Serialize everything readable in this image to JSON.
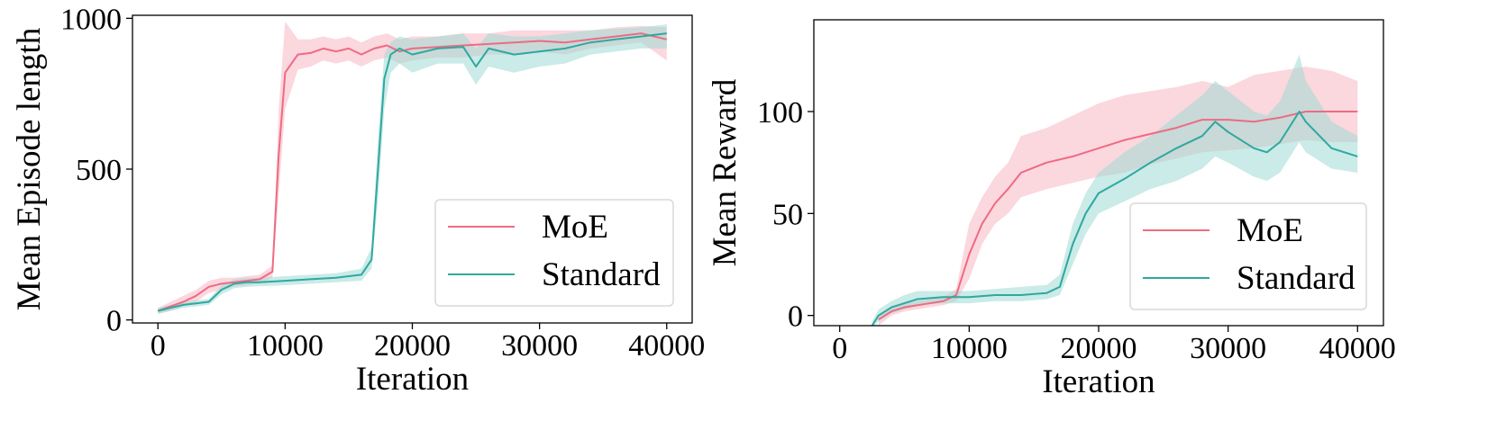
{
  "chart_data": [
    {
      "type": "line",
      "title": "",
      "xlabel": "Iteration",
      "ylabel": "Mean Episode length",
      "xlim": [
        -2000,
        42000
      ],
      "ylim": [
        -10,
        1010
      ],
      "xticks": [
        0,
        10000,
        20000,
        30000,
        40000
      ],
      "xtick_labels": [
        "0",
        "10000",
        "20000",
        "30000",
        "40000"
      ],
      "yticks": [
        0,
        500,
        1000
      ],
      "ytick_labels": [
        "0",
        "500",
        "1000"
      ],
      "grid": false,
      "legend": {
        "placement": "lower-right",
        "entries": [
          "MoE",
          "Standard"
        ]
      },
      "series": [
        {
          "name": "MoE",
          "color": "#ee6b82",
          "band_color": "#f7b6c2",
          "x": [
            0,
            1000,
            2000,
            3000,
            4000,
            5000,
            6000,
            7000,
            8000,
            9000,
            9500,
            10000,
            11000,
            12000,
            13000,
            14000,
            15000,
            16000,
            17000,
            18000,
            19000,
            20000,
            22000,
            24000,
            26000,
            28000,
            30000,
            32000,
            34000,
            36000,
            38000,
            40000
          ],
          "mean": [
            30,
            45,
            60,
            80,
            110,
            120,
            125,
            130,
            135,
            160,
            550,
            820,
            880,
            885,
            900,
            890,
            900,
            880,
            900,
            910,
            890,
            900,
            905,
            910,
            915,
            920,
            925,
            920,
            930,
            940,
            950,
            930
          ],
          "lower": [
            20,
            30,
            45,
            60,
            90,
            100,
            110,
            115,
            120,
            140,
            420,
            700,
            830,
            840,
            860,
            850,
            860,
            840,
            860,
            870,
            850,
            860,
            870,
            870,
            880,
            880,
            890,
            880,
            900,
            910,
            920,
            860
          ],
          "upper": [
            40,
            60,
            80,
            100,
            130,
            140,
            140,
            145,
            150,
            180,
            700,
            990,
            930,
            930,
            940,
            930,
            940,
            920,
            940,
            950,
            930,
            940,
            940,
            950,
            950,
            960,
            960,
            960,
            960,
            970,
            975,
            970
          ]
        },
        {
          "name": "Standard",
          "color": "#2fa8a0",
          "band_color": "#9edbd4",
          "x": [
            0,
            1000,
            2000,
            3000,
            4000,
            5000,
            6000,
            7000,
            8000,
            10000,
            12000,
            14000,
            16000,
            16800,
            17300,
            17800,
            18300,
            19000,
            20000,
            22000,
            24000,
            25000,
            26000,
            28000,
            30000,
            32000,
            34000,
            36000,
            38000,
            40000
          ],
          "mean": [
            30,
            40,
            50,
            55,
            60,
            100,
            120,
            125,
            125,
            130,
            135,
            140,
            150,
            200,
            500,
            800,
            880,
            900,
            880,
            900,
            905,
            840,
            900,
            880,
            890,
            900,
            920,
            930,
            940,
            950
          ],
          "lower": [
            20,
            30,
            40,
            45,
            50,
            85,
            105,
            110,
            112,
            115,
            120,
            125,
            130,
            170,
            400,
            700,
            820,
            850,
            820,
            850,
            850,
            780,
            840,
            820,
            840,
            850,
            880,
            890,
            900,
            900
          ],
          "upper": [
            40,
            50,
            60,
            65,
            70,
            115,
            135,
            140,
            140,
            145,
            150,
            155,
            170,
            240,
            600,
            880,
            920,
            940,
            930,
            940,
            950,
            900,
            950,
            940,
            940,
            950,
            960,
            965,
            970,
            980
          ]
        }
      ]
    },
    {
      "type": "line",
      "title": "",
      "xlabel": "Iteration",
      "ylabel": "Mean Reward",
      "xlim": [
        -2000,
        42000
      ],
      "ylim": [
        -5,
        145
      ],
      "xticks": [
        0,
        10000,
        20000,
        30000,
        40000
      ],
      "xtick_labels": [
        "0",
        "10000",
        "20000",
        "30000",
        "40000"
      ],
      "yticks": [
        0,
        50,
        100
      ],
      "ytick_labels": [
        "0",
        "50",
        "100"
      ],
      "grid": false,
      "legend": {
        "placement": "lower-right",
        "entries": [
          "MoE",
          "Standard"
        ]
      },
      "series": [
        {
          "name": "MoE",
          "color": "#ee6b82",
          "band_color": "#f7b6c2",
          "x": [
            3000,
            4000,
            5000,
            6000,
            8000,
            9000,
            10000,
            11000,
            12000,
            13000,
            14000,
            16000,
            18000,
            20000,
            22000,
            24000,
            26000,
            28000,
            30000,
            32000,
            34000,
            36000,
            38000,
            40000
          ],
          "mean": [
            -2,
            2,
            4,
            5,
            7,
            10,
            30,
            45,
            55,
            62,
            70,
            75,
            78,
            82,
            86,
            89,
            92,
            96,
            96,
            95,
            97,
            100,
            100,
            100
          ],
          "lower": [
            -5,
            0,
            2,
            3,
            5,
            7,
            18,
            35,
            45,
            50,
            58,
            62,
            65,
            68,
            70,
            74,
            77,
            80,
            81,
            82,
            84,
            86,
            85,
            85
          ],
          "upper": [
            0,
            4,
            6,
            7,
            9,
            13,
            45,
            58,
            68,
            75,
            88,
            92,
            98,
            104,
            108,
            110,
            112,
            115,
            112,
            118,
            120,
            122,
            120,
            115
          ]
        },
        {
          "name": "Standard",
          "color": "#2fa8a0",
          "band_color": "#9edbd4",
          "x": [
            2500,
            3000,
            4000,
            5000,
            6000,
            8000,
            10000,
            12000,
            14000,
            16000,
            17000,
            18000,
            19000,
            20000,
            22000,
            24000,
            26000,
            28000,
            29000,
            30000,
            32000,
            33000,
            34000,
            35500,
            36000,
            38000,
            40000
          ],
          "mean": [
            -5,
            0,
            4,
            6,
            8,
            9,
            9,
            10,
            10,
            11,
            14,
            35,
            50,
            60,
            67,
            75,
            82,
            88,
            95,
            90,
            82,
            80,
            85,
            100,
            95,
            82,
            78
          ],
          "lower": [
            -6,
            -3,
            1,
            3,
            5,
            6,
            6,
            7,
            7,
            8,
            10,
            25,
            40,
            50,
            56,
            62,
            66,
            72,
            78,
            75,
            68,
            66,
            70,
            85,
            80,
            72,
            70
          ],
          "upper": [
            -3,
            3,
            7,
            10,
            12,
            12,
            12,
            13,
            14,
            15,
            20,
            45,
            60,
            70,
            80,
            88,
            98,
            108,
            115,
            110,
            100,
            98,
            105,
            128,
            115,
            95,
            88
          ]
        }
      ]
    }
  ]
}
